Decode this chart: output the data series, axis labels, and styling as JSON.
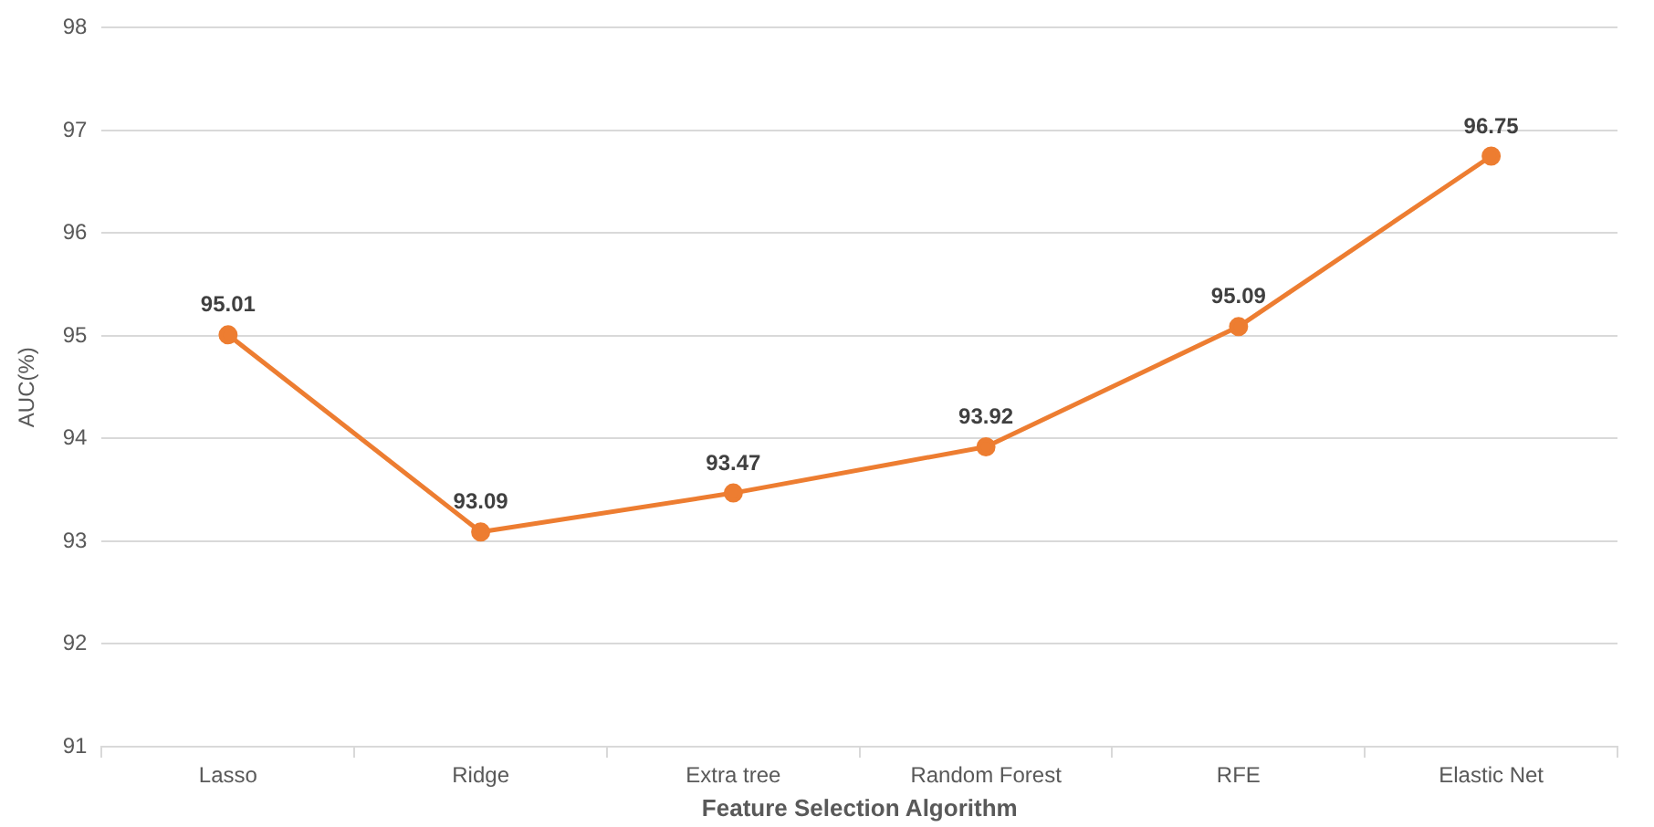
{
  "chart_data": {
    "type": "line",
    "xlabel": "Feature Selection Algorithm",
    "ylabel": "AUC(%)",
    "categories": [
      "Lasso",
      "Ridge",
      "Extra tree",
      "Random Forest",
      "RFE",
      "Elastic Net"
    ],
    "series": [
      {
        "color": "#ed7d31",
        "values": [
          95.01,
          93.09,
          93.47,
          93.92,
          95.09,
          96.75
        ]
      }
    ],
    "ylim": [
      91,
      98
    ],
    "yticks": [
      91,
      92,
      93,
      94,
      95,
      96,
      97,
      98
    ],
    "grid": "y",
    "legend": false,
    "marker": "circle",
    "line_style": "solid",
    "data_labels": true
  }
}
